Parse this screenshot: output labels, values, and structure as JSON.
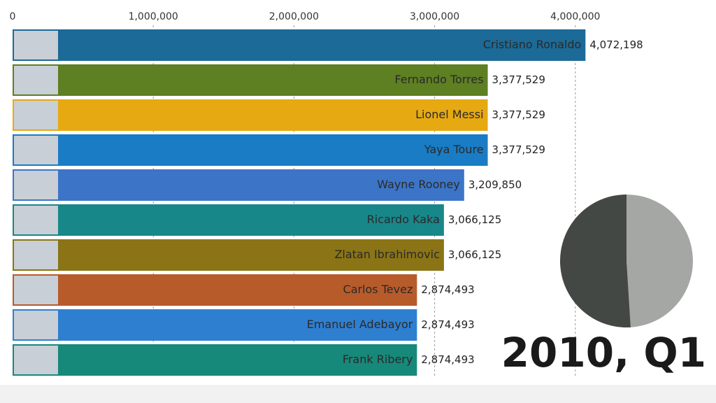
{
  "chart_data": [
    {
      "type": "barh",
      "categories": [
        "Cristiano Ronaldo",
        "Fernando Torres",
        "Lionel Messi",
        "Yaya Toure",
        "Wayne Rooney",
        "Ricardo Kaka",
        "Zlatan Ibrahimovic",
        "Carlos Tevez",
        "Emanuel Adebayor",
        "Frank Ribery"
      ],
      "values": [
        4072198,
        3377529,
        3377529,
        3377529,
        3209850,
        3066125,
        3066125,
        2874493,
        2874493,
        2874493
      ],
      "value_labels": [
        "4,072,198",
        "3,377,529",
        "3,377,529",
        "3,377,529",
        "3,209,850",
        "3,066,125",
        "3,066,125",
        "2,874,493",
        "2,874,493",
        "2,874,493"
      ],
      "colors": [
        "#1b6a97",
        "#5e7f22",
        "#e6a912",
        "#1a7cc4",
        "#3c75c7",
        "#18878a",
        "#8a7415",
        "#b75b2b",
        "#2f7fd0",
        "#17897a"
      ],
      "xlim": [
        0,
        5000000
      ],
      "xticks": [
        0,
        {
          "value": 1000000,
          "label": "1,000,000"
        },
        {
          "value": 2000000,
          "label": "2,000,000"
        },
        {
          "value": 3000000,
          "label": "3,000,000"
        },
        {
          "value": 4000000,
          "label": "4,000,000"
        }
      ],
      "grid": true,
      "annotation": "2010, Q1"
    },
    {
      "type": "pie",
      "values": [
        49,
        51
      ],
      "colors": [
        "#a4a7a4",
        "#444844"
      ]
    }
  ]
}
